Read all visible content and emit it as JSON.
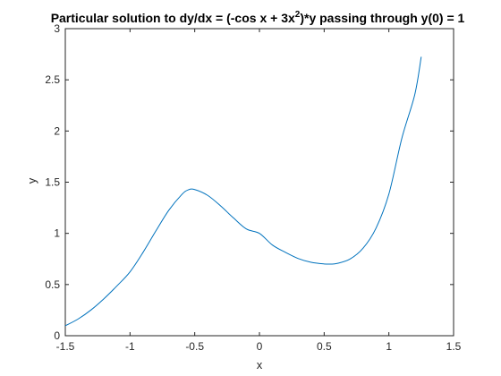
{
  "chart_data": {
    "type": "line",
    "title": "Particular solution to dy/dx = (-cos x + 3x",
    "title_superscript": "2",
    "title_suffix": ")*y passing through y(0) = 1",
    "xlabel": "x",
    "ylabel": "y",
    "xlim": [
      -1.5,
      1.5
    ],
    "ylim": [
      0,
      3
    ],
    "xticks": [
      -1.5,
      -1,
      -0.5,
      0,
      0.5,
      1,
      1.5
    ],
    "xtick_labels": [
      "-1.5",
      "-1",
      "-0.5",
      "0",
      "0.5",
      "1",
      "1.5"
    ],
    "yticks": [
      0,
      0.5,
      1,
      1.5,
      2,
      2.5,
      3
    ],
    "ytick_labels": [
      "0",
      "0.5",
      "1",
      "1.5",
      "2",
      "2.5",
      "3"
    ],
    "grid": false,
    "line_color": "#0072BD",
    "series": [
      {
        "x": [
          -1.5,
          -1.4,
          -1.3,
          -1.2,
          -1.1,
          -1.0,
          -0.9,
          -0.8,
          -0.7,
          -0.6,
          -0.55,
          -0.5,
          -0.4,
          -0.3,
          -0.2,
          -0.1,
          0.0,
          0.1,
          0.2,
          0.3,
          0.4,
          0.5,
          0.55,
          0.6,
          0.7,
          0.8,
          0.9,
          1.0,
          1.1,
          1.2,
          1.25
        ],
        "y": [
          0.097,
          0.164,
          0.253,
          0.363,
          0.488,
          0.624,
          0.813,
          1.024,
          1.226,
          1.379,
          1.425,
          1.428,
          1.371,
          1.268,
          1.15,
          1.042,
          1.0,
          0.886,
          0.815,
          0.754,
          0.717,
          0.701,
          0.7,
          0.706,
          0.749,
          0.854,
          1.049,
          1.384,
          1.928,
          2.355,
          2.725
        ]
      }
    ]
  }
}
